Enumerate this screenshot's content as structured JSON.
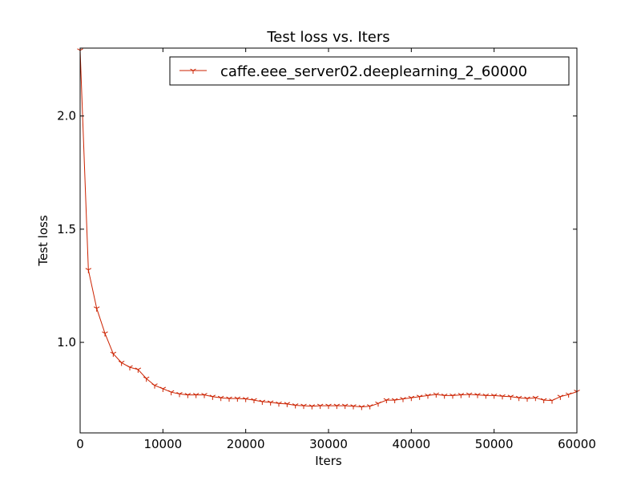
{
  "chart_data": {
    "type": "line",
    "title": "Test loss  vs. Iters",
    "xlabel": "Iters",
    "ylabel": "Test loss",
    "xlim": [
      0,
      60000
    ],
    "ylim": [
      0.6,
      2.3
    ],
    "xticks": [
      0,
      10000,
      20000,
      30000,
      40000,
      50000,
      60000
    ],
    "xtick_labels": [
      "0",
      "10000",
      "20000",
      "30000",
      "40000",
      "50000",
      "60000"
    ],
    "yticks": [
      1.0,
      1.5,
      2.0
    ],
    "ytick_labels": [
      "1.0",
      "1.5",
      "2.0"
    ],
    "grid": false,
    "legend_position": "top-right",
    "series": [
      {
        "name": "caffe.eee_server02.deeplearning_2_60000",
        "color": "#cc2200",
        "marker": "tri-down",
        "x": [
          0,
          1000,
          2000,
          3000,
          4000,
          5000,
          6000,
          7000,
          8000,
          9000,
          10000,
          11000,
          12000,
          13000,
          14000,
          15000,
          16000,
          17000,
          18000,
          19000,
          20000,
          21000,
          22000,
          23000,
          24000,
          25000,
          26000,
          27000,
          28000,
          29000,
          30000,
          31000,
          32000,
          33000,
          34000,
          35000,
          36000,
          37000,
          38000,
          39000,
          40000,
          41000,
          42000,
          43000,
          44000,
          45000,
          46000,
          47000,
          48000,
          49000,
          50000,
          51000,
          52000,
          53000,
          54000,
          55000,
          56000,
          57000,
          58000,
          59000,
          60000
        ],
        "y": [
          2.29,
          1.32,
          1.15,
          1.04,
          0.95,
          0.91,
          0.89,
          0.88,
          0.84,
          0.81,
          0.795,
          0.78,
          0.772,
          0.768,
          0.768,
          0.768,
          0.76,
          0.755,
          0.752,
          0.752,
          0.75,
          0.745,
          0.738,
          0.735,
          0.73,
          0.728,
          0.722,
          0.72,
          0.718,
          0.72,
          0.72,
          0.72,
          0.72,
          0.718,
          0.715,
          0.718,
          0.73,
          0.745,
          0.745,
          0.75,
          0.755,
          0.76,
          0.765,
          0.77,
          0.765,
          0.765,
          0.768,
          0.77,
          0.768,
          0.765,
          0.765,
          0.762,
          0.76,
          0.755,
          0.752,
          0.755,
          0.745,
          0.743,
          0.76,
          0.77,
          0.782
        ]
      }
    ]
  }
}
